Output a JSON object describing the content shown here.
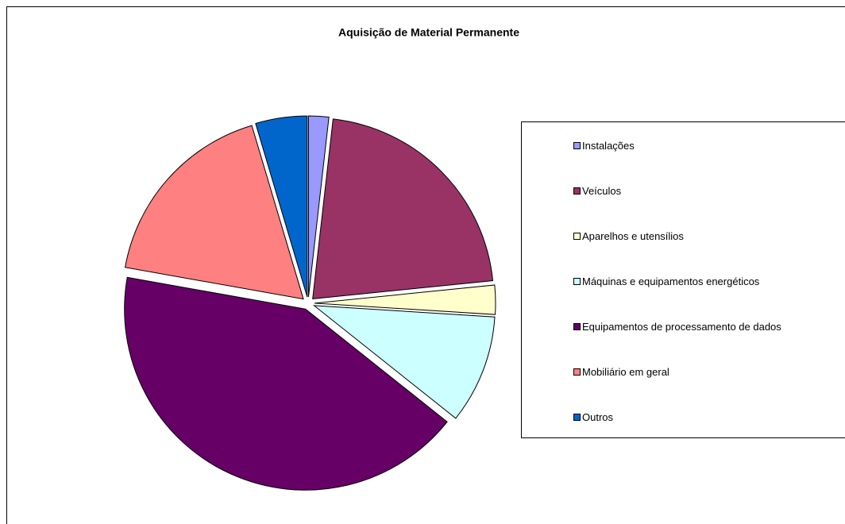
{
  "chart_data": {
    "type": "pie",
    "title": "Aquisição de Material Permanente",
    "categories": [
      "Instalações",
      "Veículos",
      "Aparelhos e utensílios",
      "Máquinas e equipamentos energéticos",
      "Equipamentos de processamento de dados",
      "Mobiliário em geral",
      "Outros"
    ],
    "values": [
      1.8,
      21.6,
      2.6,
      9.7,
      42.1,
      17.6,
      4.6
    ],
    "colors": [
      "#9999ff",
      "#993366",
      "#ffffcc",
      "#ccffff",
      "#660066",
      "#ff8080",
      "#0066cc"
    ],
    "legend": "right"
  }
}
